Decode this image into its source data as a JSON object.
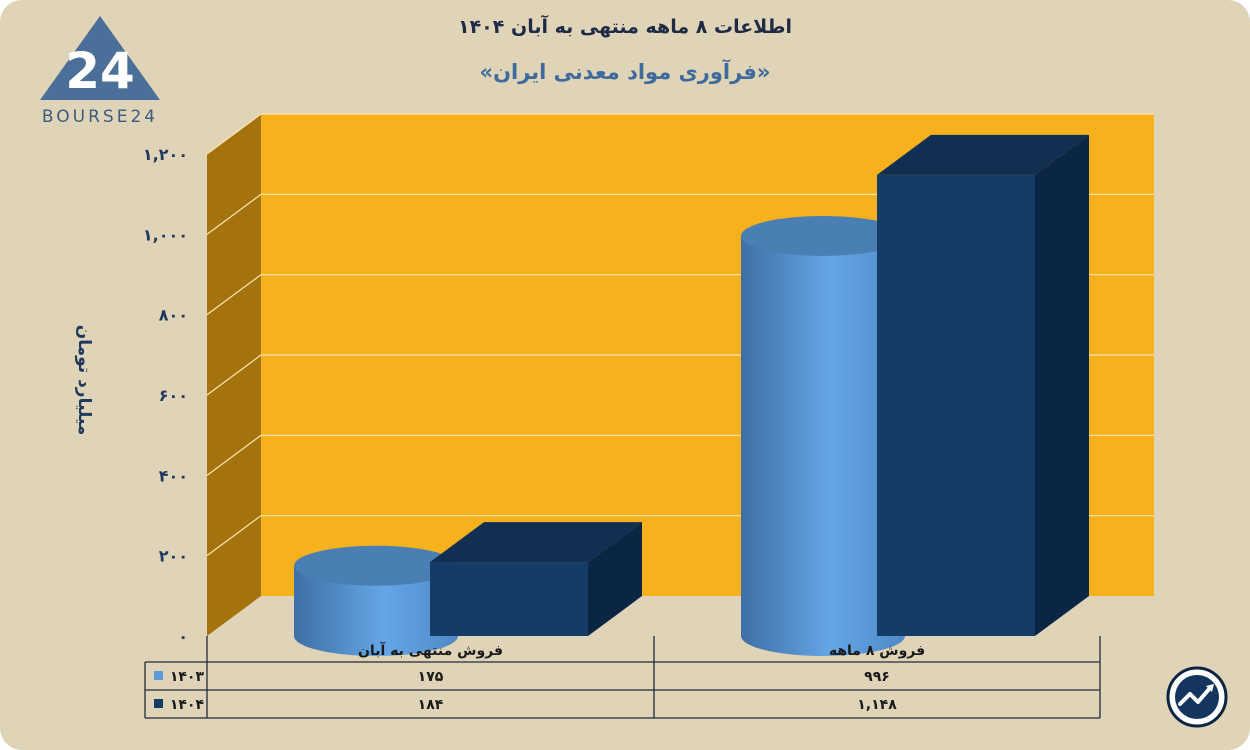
{
  "header": {
    "title": "اطلاعات ۸ ماهه منتهی به آبان ۱۴۰۴",
    "subtitle": "«فرآوری مواد معدنی ایران»"
  },
  "logo": {
    "text": "BOURSE24",
    "mark": "24"
  },
  "chart_data": {
    "type": "bar",
    "title": "اطلاعات ۸ ماهه منتهی به آبان ۱۴۰۴",
    "subtitle": "«فرآوری مواد معدنی ایران»",
    "ylabel": "میلیارد تومان",
    "xlabel": "",
    "ylim": [
      0,
      1200
    ],
    "ytick_values": [
      0,
      200,
      400,
      600,
      800,
      1000,
      1200
    ],
    "ytick_labels": [
      "۰",
      "۲۰۰",
      "۴۰۰",
      "۶۰۰",
      "۸۰۰",
      "۱,۰۰۰",
      "۱,۲۰۰"
    ],
    "grid": true,
    "categories": [
      "فروش منتهی به  آبان",
      "فروش ۸  ماهه"
    ],
    "series": [
      {
        "name": "۱۴۰۳",
        "values": [
          175,
          996
        ],
        "value_labels": [
          "۱۷۵",
          "۹۹۶"
        ],
        "color": "#5b9ad8",
        "shape": "cylinder"
      },
      {
        "name": "۱۴۰۴",
        "values": [
          184,
          1148
        ],
        "value_labels": [
          "۱۸۴",
          "۱,۱۴۸"
        ],
        "color": "#143c66",
        "shape": "box"
      }
    ],
    "legend": "data-table-below",
    "colors": {
      "wall": "#f7b11c",
      "wall_side": "#a5730e",
      "background": "#e0d4b8",
      "axis_text": "#1f3a5c"
    }
  },
  "icons": {
    "corner_button": "trend-chart-icon"
  }
}
